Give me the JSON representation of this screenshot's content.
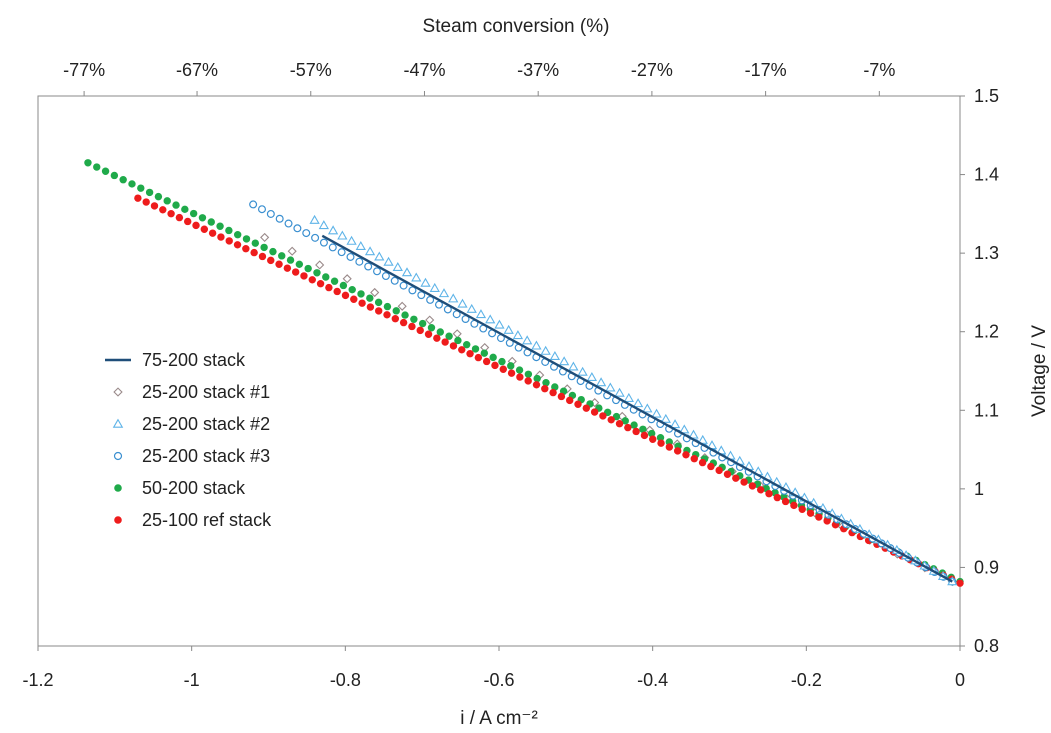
{
  "chart_data": {
    "type": "scatter",
    "title": "",
    "xlabel": "i / A cm⁻²",
    "ylabel": "Voltage / V",
    "top_xlabel": "Steam conversion (%)",
    "xlim": [
      -1.2,
      0
    ],
    "ylim": [
      0.8,
      1.5
    ],
    "x_ticks": [
      -1.2,
      -1.0,
      -0.8,
      -0.6,
      -0.4,
      -0.2,
      0
    ],
    "x_tick_labels": [
      "-1.2",
      "-1",
      "-0.8",
      "-0.6",
      "-0.4",
      "-0.2",
      "0"
    ],
    "y_ticks": [
      0.8,
      0.9,
      1.0,
      1.1,
      1.2,
      1.3,
      1.4,
      1.5
    ],
    "y_tick_labels": [
      "0.8",
      "0.9",
      "1",
      "1.1",
      "1.2",
      "1.3",
      "1.4",
      "1.5"
    ],
    "top_ticks": [
      -1.14,
      -0.993,
      -0.845,
      -0.697,
      -0.549,
      -0.401,
      -0.253,
      -0.105
    ],
    "top_tick_labels": [
      "-77%",
      "-67%",
      "-57%",
      "-47%",
      "-37%",
      "-27%",
      "-17%",
      "-7%"
    ],
    "y_axis_position": "right",
    "grid": false,
    "legend_position": "center-left",
    "series": [
      {
        "name": "75-200 stack",
        "marker": "line",
        "color": "#1f4e79",
        "x_range": [
          -0.83,
          -0.01
        ],
        "y_range": [
          1.322,
          0.882
        ],
        "n": 2
      },
      {
        "name": "25-200 stack #1",
        "marker": "diamond-open",
        "color": "#9a8a8a",
        "x_range": [
          -0.905,
          -0.01
        ],
        "y_range": [
          1.32,
          0.882
        ],
        "n": 26
      },
      {
        "name": "25-200 stack #2",
        "marker": "triangle-open",
        "color": "#5fb4e8",
        "x_range": [
          -0.84,
          -0.01
        ],
        "y_range": [
          1.342,
          0.882
        ],
        "n": 70
      },
      {
        "name": "25-200 stack #3",
        "marker": "circle-open",
        "color": "#3a8fd0",
        "x_range": [
          -0.92,
          -0.01
        ],
        "y_range": [
          1.362,
          0.882
        ],
        "n": 80
      },
      {
        "name": "50-200 stack",
        "marker": "circle-filled",
        "color": "#1faa4a",
        "x_range": [
          -1.135,
          0
        ],
        "y_range": [
          1.415,
          0.882
        ],
        "n": 100
      },
      {
        "name": "25-100 ref stack",
        "marker": "circle-filled",
        "color": "#ee1c1c",
        "x_range": [
          -1.07,
          0
        ],
        "y_range": [
          1.37,
          0.88
        ],
        "n": 100
      }
    ]
  }
}
